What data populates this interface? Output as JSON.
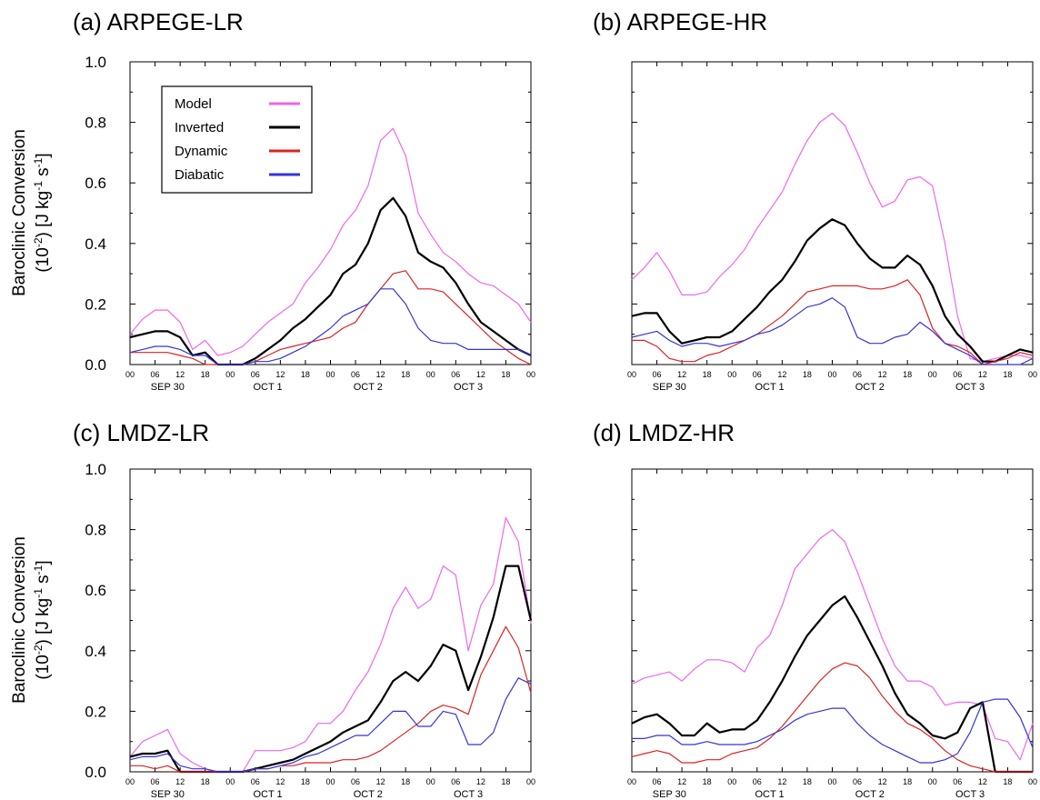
{
  "figure": {
    "ylabel_line1": "Baroclinic Conversion",
    "ylabel_line2_prefix": "(10",
    "ylabel_line2_exp1": "-2",
    "ylabel_line2_mid": ") [J kg",
    "ylabel_line2_exp2": "-1",
    "ylabel_line2_mid2": " s",
    "ylabel_line2_exp3": "-1",
    "ylabel_line2_end": "]",
    "legend": [
      {
        "label": "Model",
        "color": "#ee66ee"
      },
      {
        "label": "Inverted",
        "color": "#000000"
      },
      {
        "label": "Dynamic",
        "color": "#dd2222"
      },
      {
        "label": "Diabatic",
        "color": "#3333dd"
      }
    ]
  },
  "chart_data": [
    {
      "type": "line",
      "title": "(a) ARPEGE-LR",
      "ylim": [
        0,
        1.0
      ],
      "yticks": [
        "0.0",
        "0.2",
        "0.4",
        "0.6",
        "0.8",
        "1.0"
      ],
      "xticks": [
        "00",
        "06",
        "12",
        "18",
        "00",
        "06",
        "12",
        "18",
        "00",
        "06",
        "12",
        "18",
        "00",
        "06",
        "12",
        "18",
        "00"
      ],
      "xdates": [
        "SEP 30",
        "OCT  1",
        "OCT  2",
        "OCT  3"
      ],
      "grid": false,
      "legend_position": "top-left",
      "series": [
        {
          "name": "Model",
          "color": "#ee66ee",
          "values": [
            0.1,
            0.15,
            0.18,
            0.18,
            0.14,
            0.05,
            0.08,
            0.03,
            0.04,
            0.06,
            0.1,
            0.14,
            0.17,
            0.2,
            0.27,
            0.32,
            0.38,
            0.46,
            0.51,
            0.59,
            0.74,
            0.78,
            0.69,
            0.5,
            0.43,
            0.37,
            0.34,
            0.3,
            0.27,
            0.26,
            0.23,
            0.2,
            0.14
          ]
        },
        {
          "name": "Inverted",
          "color": "#000000",
          "values": [
            0.09,
            0.1,
            0.11,
            0.11,
            0.09,
            0.03,
            0.04,
            0.0,
            0.0,
            0.0,
            0.02,
            0.05,
            0.08,
            0.12,
            0.15,
            0.19,
            0.23,
            0.3,
            0.33,
            0.4,
            0.51,
            0.55,
            0.49,
            0.37,
            0.34,
            0.32,
            0.27,
            0.2,
            0.14,
            0.11,
            0.08,
            0.05,
            0.03
          ]
        },
        {
          "name": "Dynamic",
          "color": "#dd2222",
          "values": [
            0.04,
            0.04,
            0.04,
            0.04,
            0.03,
            0.02,
            0.0,
            0.0,
            0.0,
            0.0,
            0.01,
            0.03,
            0.05,
            0.06,
            0.07,
            0.08,
            0.09,
            0.12,
            0.14,
            0.2,
            0.25,
            0.3,
            0.31,
            0.25,
            0.25,
            0.24,
            0.2,
            0.16,
            0.12,
            0.08,
            0.05,
            0.02,
            0.0
          ]
        },
        {
          "name": "Diabatic",
          "color": "#3333dd",
          "values": [
            0.04,
            0.05,
            0.06,
            0.06,
            0.05,
            0.03,
            0.03,
            0.0,
            0.0,
            0.0,
            0.01,
            0.01,
            0.02,
            0.04,
            0.06,
            0.09,
            0.12,
            0.16,
            0.18,
            0.2,
            0.25,
            0.25,
            0.2,
            0.12,
            0.08,
            0.07,
            0.07,
            0.05,
            0.05,
            0.05,
            0.05,
            0.05,
            0.03
          ]
        }
      ]
    },
    {
      "type": "line",
      "title": "(b) ARPEGE-HR",
      "ylim": [
        0,
        1.0
      ],
      "yticks": [
        "",
        "",
        "",
        "",
        "",
        ""
      ],
      "xticks": [
        "00",
        "06",
        "12",
        "18",
        "00",
        "06",
        "12",
        "18",
        "00",
        "06",
        "12",
        "18",
        "00",
        "06",
        "12",
        "18",
        "00"
      ],
      "xdates": [
        "SEP 30",
        "OCT  1",
        "OCT  2",
        "OCT  3"
      ],
      "grid": false,
      "series": [
        {
          "name": "Model",
          "color": "#ee66ee",
          "values": [
            0.28,
            0.32,
            0.37,
            0.31,
            0.23,
            0.23,
            0.24,
            0.29,
            0.33,
            0.38,
            0.45,
            0.51,
            0.57,
            0.66,
            0.74,
            0.8,
            0.83,
            0.79,
            0.7,
            0.6,
            0.52,
            0.54,
            0.61,
            0.62,
            0.59,
            0.4,
            0.16,
            0.02,
            0.01,
            0.02,
            0.03,
            0.03,
            0.02
          ]
        },
        {
          "name": "Inverted",
          "color": "#000000",
          "values": [
            0.16,
            0.17,
            0.17,
            0.11,
            0.07,
            0.08,
            0.09,
            0.09,
            0.11,
            0.15,
            0.19,
            0.24,
            0.28,
            0.34,
            0.41,
            0.45,
            0.48,
            0.46,
            0.4,
            0.35,
            0.32,
            0.32,
            0.36,
            0.33,
            0.26,
            0.16,
            0.1,
            0.06,
            0.01,
            0.01,
            0.03,
            0.05,
            0.04
          ]
        },
        {
          "name": "Dynamic",
          "color": "#dd2222",
          "values": [
            0.08,
            0.08,
            0.06,
            0.02,
            0.01,
            0.01,
            0.03,
            0.04,
            0.06,
            0.08,
            0.1,
            0.13,
            0.16,
            0.2,
            0.24,
            0.25,
            0.26,
            0.26,
            0.26,
            0.25,
            0.25,
            0.26,
            0.28,
            0.23,
            0.12,
            0.07,
            0.06,
            0.04,
            0.0,
            0.01,
            0.02,
            0.04,
            0.03
          ]
        },
        {
          "name": "Diabatic",
          "color": "#3333dd",
          "values": [
            0.09,
            0.1,
            0.11,
            0.08,
            0.06,
            0.07,
            0.07,
            0.06,
            0.07,
            0.08,
            0.1,
            0.11,
            0.13,
            0.16,
            0.19,
            0.2,
            0.22,
            0.19,
            0.09,
            0.07,
            0.07,
            0.09,
            0.1,
            0.14,
            0.11,
            0.07,
            0.05,
            0.03,
            0.0,
            0.0,
            0.0,
            0.0,
            0.02
          ]
        }
      ]
    },
    {
      "type": "line",
      "title": "(c) LMDZ-LR",
      "ylim": [
        0,
        1.0
      ],
      "yticks": [
        "0.0",
        "0.2",
        "0.4",
        "0.6",
        "0.8",
        "1.0"
      ],
      "xticks": [
        "00",
        "06",
        "12",
        "18",
        "00",
        "06",
        "12",
        "18",
        "00",
        "06",
        "12",
        "18",
        "00",
        "06",
        "12",
        "18",
        "00"
      ],
      "xdates": [
        "SEP 30",
        "OCT  1",
        "OCT  2",
        "OCT  3"
      ],
      "grid": false,
      "series": [
        {
          "name": "Model",
          "color": "#ee66ee",
          "values": [
            0.05,
            0.1,
            0.12,
            0.14,
            0.06,
            0.03,
            0.01,
            0.0,
            0.0,
            0.0,
            0.07,
            0.07,
            0.07,
            0.08,
            0.1,
            0.16,
            0.16,
            0.2,
            0.27,
            0.33,
            0.42,
            0.54,
            0.61,
            0.54,
            0.57,
            0.68,
            0.65,
            0.4,
            0.55,
            0.62,
            0.84,
            0.76,
            0.49
          ]
        },
        {
          "name": "Inverted",
          "color": "#000000",
          "values": [
            0.05,
            0.06,
            0.06,
            0.07,
            0.0,
            0.0,
            0.0,
            0.0,
            0.0,
            0.0,
            0.01,
            0.02,
            0.03,
            0.04,
            0.06,
            0.08,
            0.1,
            0.13,
            0.15,
            0.17,
            0.23,
            0.3,
            0.33,
            0.3,
            0.35,
            0.42,
            0.4,
            0.27,
            0.38,
            0.51,
            0.68,
            0.68,
            0.5
          ]
        },
        {
          "name": "Dynamic",
          "color": "#dd2222",
          "values": [
            0.02,
            0.02,
            0.01,
            0.02,
            0.0,
            0.0,
            0.0,
            0.0,
            0.0,
            0.0,
            0.01,
            0.01,
            0.02,
            0.02,
            0.03,
            0.03,
            0.03,
            0.04,
            0.04,
            0.05,
            0.07,
            0.1,
            0.13,
            0.16,
            0.2,
            0.22,
            0.21,
            0.19,
            0.32,
            0.4,
            0.48,
            0.41,
            0.26
          ]
        },
        {
          "name": "Diabatic",
          "color": "#3333dd",
          "values": [
            0.04,
            0.05,
            0.05,
            0.06,
            0.02,
            0.01,
            0.01,
            0.0,
            0.0,
            0.0,
            0.01,
            0.01,
            0.02,
            0.03,
            0.05,
            0.06,
            0.08,
            0.1,
            0.12,
            0.12,
            0.16,
            0.2,
            0.2,
            0.15,
            0.15,
            0.2,
            0.19,
            0.09,
            0.09,
            0.13,
            0.24,
            0.31,
            0.29
          ]
        }
      ]
    },
    {
      "type": "line",
      "title": "(d) LMDZ-HR",
      "ylim": [
        0,
        1.0
      ],
      "yticks": [
        "",
        "",
        "",
        "",
        "",
        ""
      ],
      "xticks": [
        "00",
        "06",
        "12",
        "18",
        "00",
        "06",
        "12",
        "18",
        "00",
        "06",
        "12",
        "18",
        "00",
        "06",
        "12",
        "18",
        "00"
      ],
      "xdates": [
        "SEP 30",
        "OCT  1",
        "OCT  2",
        "OCT  3"
      ],
      "grid": false,
      "series": [
        {
          "name": "Model",
          "color": "#ee66ee",
          "values": [
            0.29,
            0.31,
            0.32,
            0.33,
            0.3,
            0.34,
            0.37,
            0.37,
            0.36,
            0.33,
            0.41,
            0.45,
            0.55,
            0.67,
            0.72,
            0.77,
            0.8,
            0.76,
            0.66,
            0.55,
            0.44,
            0.35,
            0.3,
            0.3,
            0.28,
            0.22,
            0.23,
            0.23,
            0.22,
            0.11,
            0.1,
            0.04,
            0.16
          ]
        },
        {
          "name": "Inverted",
          "color": "#000000",
          "values": [
            0.16,
            0.18,
            0.19,
            0.16,
            0.12,
            0.12,
            0.16,
            0.13,
            0.14,
            0.14,
            0.17,
            0.23,
            0.3,
            0.38,
            0.45,
            0.5,
            0.55,
            0.58,
            0.51,
            0.43,
            0.35,
            0.26,
            0.19,
            0.16,
            0.12,
            0.11,
            0.13,
            0.21,
            0.23,
            0.0,
            0.0,
            0.0,
            0.0
          ]
        },
        {
          "name": "Dynamic",
          "color": "#dd2222",
          "values": [
            0.05,
            0.06,
            0.07,
            0.06,
            0.03,
            0.03,
            0.04,
            0.04,
            0.06,
            0.07,
            0.08,
            0.11,
            0.15,
            0.2,
            0.25,
            0.3,
            0.34,
            0.36,
            0.35,
            0.31,
            0.25,
            0.2,
            0.16,
            0.14,
            0.11,
            0.07,
            0.04,
            0.02,
            0.01,
            0.0,
            0.0,
            0.0,
            0.0
          ]
        },
        {
          "name": "Diabatic",
          "color": "#3333dd",
          "values": [
            0.11,
            0.11,
            0.12,
            0.12,
            0.09,
            0.09,
            0.1,
            0.09,
            0.09,
            0.09,
            0.1,
            0.12,
            0.14,
            0.17,
            0.19,
            0.2,
            0.21,
            0.21,
            0.16,
            0.12,
            0.09,
            0.07,
            0.05,
            0.03,
            0.03,
            0.04,
            0.06,
            0.13,
            0.23,
            0.24,
            0.24,
            0.18,
            0.08
          ]
        }
      ]
    }
  ]
}
